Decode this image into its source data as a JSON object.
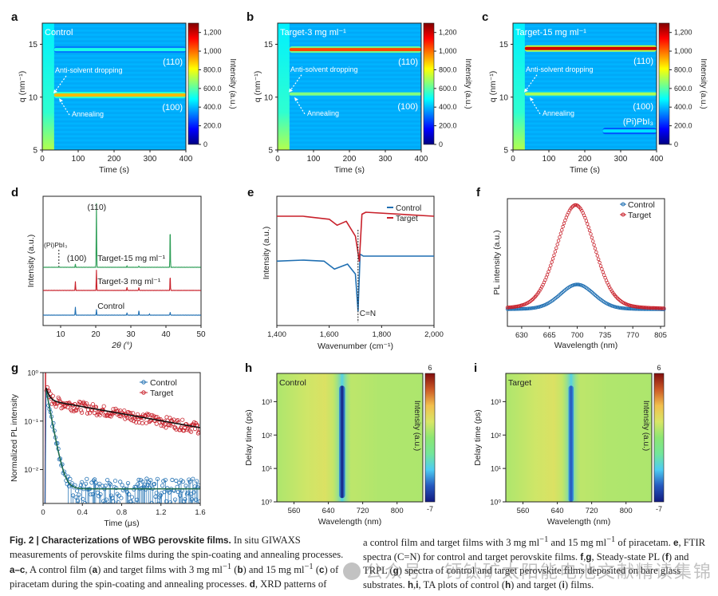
{
  "figure": {
    "panels": [
      "a",
      "b",
      "c",
      "d",
      "e",
      "f",
      "g",
      "h",
      "i"
    ]
  },
  "chart_data": [
    {
      "panel": "a",
      "type": "heatmap",
      "title": "Control",
      "xlabel": "Time (s)",
      "ylabel": "q (nm⁻¹)",
      "xlim": [
        0,
        400
      ],
      "ylim": [
        5,
        17
      ],
      "xticks": [
        "0",
        "100",
        "200",
        "300",
        "400"
      ],
      "yticks": [
        "5",
        "10",
        "15"
      ],
      "colorbar": {
        "label": "Intensity (a.u.)",
        "range": [
          0,
          1300
        ],
        "ticks": [
          "0",
          "200.0",
          "400.0",
          "600.0",
          "800.0",
          "1,000",
          "1,200"
        ]
      },
      "bands": [
        {
          "label": "(110)",
          "q": 14.5,
          "t_start": 33,
          "intensity": 520
        },
        {
          "label": "(100)",
          "q": 10.2,
          "t_start": 33,
          "intensity": 900
        }
      ],
      "annotations": [
        "Anti-solvent dropping",
        "Annealing"
      ]
    },
    {
      "panel": "b",
      "type": "heatmap",
      "title": "Target-3 mg ml⁻¹",
      "xlabel": "Time (s)",
      "ylabel": "q (nm⁻¹)",
      "xlim": [
        0,
        400
      ],
      "ylim": [
        5,
        17
      ],
      "xticks": [
        "0",
        "100",
        "200",
        "300",
        "400"
      ],
      "yticks": [
        "5",
        "10",
        "15"
      ],
      "colorbar": {
        "label": "Intensity (a.u.)",
        "range": [
          0,
          1300
        ],
        "ticks": [
          "0",
          "200.0",
          "400.0",
          "600.0",
          "800.0",
          "1,000",
          "1,200"
        ]
      },
      "bands": [
        {
          "label": "(110)",
          "q": 14.5,
          "t_start": 33,
          "intensity": 1050
        },
        {
          "label": "(100)",
          "q": 10.3,
          "t_start": 33,
          "intensity": 650
        }
      ],
      "annotations": [
        "Anti-solvent dropping",
        "Annealing"
      ]
    },
    {
      "panel": "c",
      "type": "heatmap",
      "title": "Target-15 mg ml⁻¹",
      "xlabel": "Time (s)",
      "ylabel": "q (nm⁻¹)",
      "xlim": [
        0,
        400
      ],
      "ylim": [
        5,
        17
      ],
      "xticks": [
        "0",
        "100",
        "200",
        "300",
        "400"
      ],
      "yticks": [
        "5",
        "10",
        "15"
      ],
      "colorbar": {
        "label": "Intensity (a.u.)",
        "range": [
          0,
          1300
        ],
        "ticks": [
          "0",
          "200.0",
          "400.0",
          "600.0",
          "800.0",
          "1,000",
          "1,200"
        ]
      },
      "bands": [
        {
          "label": "(110)",
          "q": 14.6,
          "t_start": 33,
          "intensity": 1200
        },
        {
          "label": "(100)",
          "q": 10.3,
          "t_start": 33,
          "intensity": 700
        },
        {
          "label": "(Pi)PbI₃",
          "q": 6.8,
          "t_start": 250,
          "intensity": 450
        }
      ],
      "annotations": [
        "Anti-solvent dropping",
        "Annealing"
      ]
    },
    {
      "panel": "d",
      "type": "line",
      "xlabel": "2θ (°)",
      "ylabel": "Intensity (a.u.)",
      "xlim": [
        5,
        50
      ],
      "xticks": [
        "10",
        "20",
        "30",
        "40",
        "50"
      ],
      "annotations": [
        "(110)",
        "(100)",
        "(Pi)PbI₃"
      ],
      "series": [
        {
          "name": "Control",
          "color": "#1f6fb2",
          "peaks": [
            [
              14.2,
              0.13
            ],
            [
              20.2,
              0.09
            ],
            [
              28.9,
              0.04
            ],
            [
              32.3,
              0.07
            ],
            [
              35.3,
              0.02
            ],
            [
              41.2,
              0.05
            ]
          ]
        },
        {
          "name": "Target-3 mg ml⁻¹",
          "color": "#c8202a",
          "peaks": [
            [
              14.2,
              0.14
            ],
            [
              20.2,
              0.32
            ],
            [
              28.9,
              0.05
            ],
            [
              32.3,
              0.05
            ],
            [
              41.2,
              0.23
            ]
          ]
        },
        {
          "name": "Target-15 mg ml⁻¹",
          "color": "#2e9e57",
          "peaks": [
            [
              9.5,
              0.005
            ],
            [
              14.2,
              0.05
            ],
            [
              20.2,
              1.0
            ],
            [
              28.9,
              0.02
            ],
            [
              32.3,
              0.02
            ],
            [
              41.2,
              0.62
            ]
          ]
        }
      ]
    },
    {
      "panel": "e",
      "type": "line",
      "xlabel": "Wavenumber (cm⁻¹)",
      "ylabel": "Intensity (a.u.)",
      "xlim": [
        1400,
        2000
      ],
      "xticks": [
        "1,400",
        "1,600",
        "1,800",
        "2,000"
      ],
      "annotations": [
        "C=N"
      ],
      "marker_line_x": 1710,
      "legend": "top-right",
      "series": [
        {
          "name": "Control",
          "color": "#1f6fb2",
          "x": [
            1400,
            1500,
            1580,
            1620,
            1670,
            1700,
            1710,
            1718,
            1730,
            2000
          ],
          "y": [
            0.55,
            0.56,
            0.55,
            0.47,
            0.52,
            0.42,
            0.05,
            0.62,
            0.6,
            0.6
          ]
        },
        {
          "name": "Target",
          "color": "#c8202a",
          "x": [
            1400,
            1500,
            1600,
            1630,
            1665,
            1700,
            1715,
            1725,
            1740,
            2000
          ],
          "y": [
            1.0,
            1.0,
            0.97,
            0.91,
            0.95,
            0.8,
            0.55,
            1.02,
            1.04,
            1.0
          ]
        }
      ]
    },
    {
      "panel": "f",
      "type": "scatter",
      "xlabel": "Wavelength (nm)",
      "ylabel": "PL intensity (a.u.)",
      "xlim": [
        612,
        810
      ],
      "xticks": [
        "630",
        "665",
        "700",
        "735",
        "770",
        "805"
      ],
      "legend": "top-right",
      "series": [
        {
          "name": "Control",
          "color": "#1f6fb2",
          "peak_nm": 700,
          "peak_value": 0.24,
          "fwhm_nm": 50
        },
        {
          "name": "Target",
          "color": "#c8202a",
          "peak_nm": 698,
          "peak_value": 1.0,
          "fwhm_nm": 55
        }
      ]
    },
    {
      "panel": "g",
      "type": "scatter",
      "xlabel": "Time (μs)",
      "ylabel": "Normalized PL intensity",
      "xlim": [
        0,
        1.6
      ],
      "ylim": [
        0.002,
        1
      ],
      "yscale": "log",
      "xticks": [
        "0",
        "0.4",
        "0.8",
        "1.2",
        "1.6"
      ],
      "yticks": [
        "10⁰",
        "10⁻¹",
        "10⁻²"
      ],
      "legend": "top-right",
      "series": [
        {
          "name": "Control",
          "color": "#1f6fb2",
          "fit_color": "#1f6b4f",
          "decay": {
            "a1": 0.45,
            "tau1_us": 0.04,
            "baseline": 0.004
          }
        },
        {
          "name": "Target",
          "color": "#c8202a",
          "fit_color": "#111111",
          "decay": {
            "a1": 0.22,
            "tau1_us": 0.03,
            "a2": 0.27,
            "tau2_us": 1.2
          }
        }
      ]
    },
    {
      "panel": "h",
      "type": "heatmap",
      "title": "Control",
      "xlabel": "Wavelength (nm)",
      "ylabel": "Delay time (ps)",
      "xlim": [
        520,
        860
      ],
      "ylim": [
        1,
        7000
      ],
      "yscale": "log",
      "xticks": [
        "560",
        "640",
        "720",
        "800"
      ],
      "yticks": [
        "10⁰",
        "10¹",
        "10²",
        "10³"
      ],
      "colorbar": {
        "label": "Intensity (a.u.)",
        "range": [
          -7,
          6
        ],
        "ticks": [
          "-7",
          "6"
        ]
      },
      "bleach": {
        "center_nm": 672,
        "width_nm": 14,
        "min_value": -7,
        "ps_start": 1.3,
        "ps_end": 3000
      }
    },
    {
      "panel": "i",
      "type": "heatmap",
      "title": "Target",
      "xlabel": "Wavelength (nm)",
      "ylabel": "Delay time (ps)",
      "xlim": [
        520,
        860
      ],
      "ylim": [
        1,
        7000
      ],
      "yscale": "log",
      "xticks": [
        "560",
        "640",
        "720",
        "800"
      ],
      "yticks": [
        "10⁰",
        "10¹",
        "10²",
        "10³"
      ],
      "colorbar": {
        "label": "Intensity (a.u.)",
        "range": [
          -7,
          6
        ],
        "ticks": [
          "-7",
          "6"
        ]
      },
      "bleach": {
        "center_nm": 672,
        "width_nm": 12,
        "min_value": -5.5,
        "ps_start": 1,
        "ps_end": 3000
      }
    }
  ],
  "caption": {
    "fig_label": "Fig. 2 | Characterizations of WBG perovskite films.",
    "left_html": " In situ GIWAXS measurements of perovskite films during the spin-coating and annealing processes. <b>a–c</b>, A control film (<b>a</b>) and target films with 3 mg ml<sup>−1</sup> (<b>b</b>) and 15 mg ml<sup>−1</sup> (<b>c</b>) of piracetam during the spin-coating and annealing processes. <b>d</b>, XRD patterns of",
    "right_html": "a control film and target films with 3 mg ml<sup>−1</sup> and 15 mg ml<sup>−1</sup> of piracetam. <b>e</b>, FTIR spectra (C=N) for control and target perovskite films. <b>f</b>,<b>g</b>, Steady-state PL (<b>f</b>) and TRPL (<b>g</b>) spectra of control and target perovskite films deposited on bare glass substrates. <b>h</b>,<b>i</b>, TA plots of control (<b>h</b>) and target (<b>i</b>) films."
  },
  "watermark": "公众号 · 钙钛矿太阳能电池文献精读集锦"
}
